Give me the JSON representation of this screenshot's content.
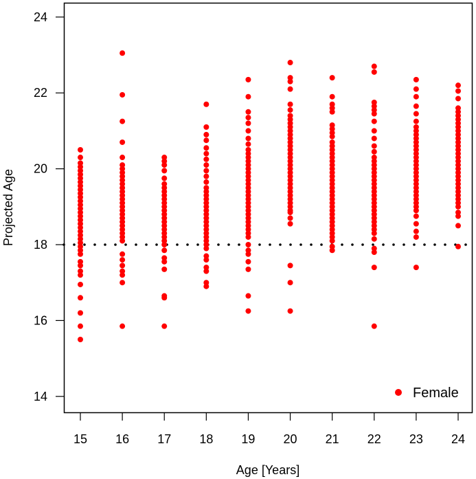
{
  "chart_data": {
    "type": "scatter",
    "title": "",
    "xlabel": "Age [Years]",
    "ylabel": "Projected Age",
    "xlim": [
      14.6,
      24.35
    ],
    "ylim": [
      13.6,
      24.4
    ],
    "xticks": [
      15,
      16,
      17,
      18,
      19,
      20,
      21,
      22,
      23,
      24
    ],
    "xtick_labels": [
      "15",
      "16",
      "17",
      "18",
      "19",
      "20",
      "21",
      "22",
      "23",
      "24"
    ],
    "yticks": [
      14,
      16,
      18,
      20,
      22,
      24
    ],
    "ytick_labels": [
      "14",
      "16",
      "18",
      "20",
      "22",
      "24"
    ],
    "grid": false,
    "legend": {
      "position": "bottom-right",
      "entries": [
        {
          "label": "Female",
          "color": "#ff0000",
          "marker": "circle"
        }
      ]
    },
    "reference_line": {
      "y": 18,
      "style": "dotted",
      "color": "#000000"
    },
    "series": [
      {
        "name": "Female",
        "color": "#ff0000",
        "points_by_age": [
          {
            "x": 15,
            "y": [
              20.5,
              20.3,
              20.15,
              20.05,
              19.95,
              19.85,
              19.75,
              19.65,
              19.55,
              19.45,
              19.35,
              19.25,
              19.15,
              19.05,
              18.95,
              18.85,
              18.75,
              18.65,
              18.55,
              18.45,
              18.35,
              18.25,
              18.15,
              18.05,
              17.95,
              17.85,
              17.75,
              17.55,
              17.45,
              17.3,
              17.2,
              16.95,
              16.6,
              16.2,
              15.85,
              15.5
            ]
          },
          {
            "x": 16,
            "y": [
              23.05,
              21.95,
              21.25,
              20.7,
              20.3,
              20.1,
              20.0,
              19.9,
              19.8,
              19.7,
              19.6,
              19.5,
              19.4,
              19.3,
              19.2,
              19.1,
              19.0,
              18.9,
              18.8,
              18.7,
              18.6,
              18.5,
              18.4,
              18.3,
              18.2,
              18.1,
              17.75,
              17.6,
              17.45,
              17.3,
              17.2,
              17.0,
              15.85
            ]
          },
          {
            "x": 17,
            "y": [
              20.3,
              20.2,
              20.1,
              19.95,
              19.75,
              19.6,
              19.5,
              19.4,
              19.3,
              19.2,
              19.1,
              19.0,
              18.9,
              18.8,
              18.7,
              18.6,
              18.5,
              18.4,
              18.3,
              18.2,
              18.1,
              18.0,
              17.85,
              17.65,
              17.55,
              17.35,
              16.65,
              16.6,
              15.85
            ]
          },
          {
            "x": 18,
            "y": [
              21.7,
              21.1,
              20.9,
              20.75,
              20.55,
              20.4,
              20.25,
              20.1,
              19.95,
              19.8,
              19.65,
              19.5,
              19.4,
              19.3,
              19.2,
              19.1,
              19.0,
              18.9,
              18.8,
              18.7,
              18.6,
              18.5,
              18.4,
              18.3,
              18.2,
              18.1,
              18.0,
              17.9,
              17.7,
              17.6,
              17.4,
              17.3,
              17.0,
              16.9
            ]
          },
          {
            "x": 19,
            "y": [
              22.35,
              21.9,
              21.5,
              21.35,
              21.2,
              21.0,
              20.8,
              20.65,
              20.5,
              20.4,
              20.3,
              20.2,
              20.1,
              20.0,
              19.9,
              19.8,
              19.7,
              19.6,
              19.5,
              19.4,
              19.3,
              19.2,
              19.1,
              19.0,
              18.9,
              18.8,
              18.7,
              18.6,
              18.5,
              18.4,
              18.3,
              18.2,
              18.0,
              17.85,
              17.75,
              17.55,
              17.35,
              16.65,
              16.25
            ]
          },
          {
            "x": 20,
            "y": [
              22.8,
              22.4,
              22.3,
              22.1,
              21.7,
              21.55,
              21.4,
              21.3,
              21.2,
              21.1,
              21.0,
              20.9,
              20.8,
              20.7,
              20.6,
              20.5,
              20.4,
              20.3,
              20.2,
              20.1,
              20.0,
              19.9,
              19.8,
              19.7,
              19.6,
              19.5,
              19.4,
              19.3,
              19.2,
              19.1,
              19.0,
              18.9,
              18.85,
              18.7,
              18.55,
              17.45,
              17.0,
              16.25
            ]
          },
          {
            "x": 21,
            "y": [
              22.4,
              21.9,
              21.7,
              21.6,
              21.5,
              21.15,
              21.05,
              20.95,
              20.85,
              20.7,
              20.6,
              20.5,
              20.4,
              20.3,
              20.2,
              20.1,
              20.0,
              19.9,
              19.8,
              19.7,
              19.6,
              19.5,
              19.4,
              19.3,
              19.2,
              19.1,
              19.0,
              18.9,
              18.8,
              18.7,
              18.6,
              18.5,
              18.4,
              18.3,
              18.2,
              18.1,
              17.95,
              17.85
            ]
          },
          {
            "x": 22,
            "y": [
              22.7,
              22.55,
              21.75,
              21.65,
              21.55,
              21.45,
              21.25,
              21.0,
              20.8,
              20.6,
              20.45,
              20.3,
              20.2,
              20.1,
              20.0,
              19.9,
              19.8,
              19.7,
              19.6,
              19.5,
              19.4,
              19.3,
              19.2,
              19.1,
              19.0,
              18.9,
              18.8,
              18.7,
              18.6,
              18.5,
              18.4,
              18.3,
              18.15,
              17.9,
              17.8,
              17.4,
              15.85
            ]
          },
          {
            "x": 23,
            "y": [
              22.35,
              22.1,
              21.9,
              21.65,
              21.45,
              21.25,
              21.1,
              21.0,
              20.9,
              20.8,
              20.7,
              20.6,
              20.5,
              20.4,
              20.3,
              20.2,
              20.1,
              20.0,
              19.9,
              19.8,
              19.7,
              19.6,
              19.5,
              19.4,
              19.3,
              19.2,
              19.1,
              19.0,
              18.9,
              18.75,
              18.55,
              18.35,
              18.2,
              17.4
            ]
          },
          {
            "x": 24,
            "y": [
              22.2,
              22.05,
              21.85,
              21.6,
              21.5,
              21.4,
              21.3,
              21.2,
              21.1,
              21.0,
              20.9,
              20.8,
              20.7,
              20.6,
              20.5,
              20.4,
              20.3,
              20.2,
              20.1,
              20.0,
              19.9,
              19.8,
              19.7,
              19.6,
              19.5,
              19.4,
              19.3,
              19.2,
              19.1,
              19.0,
              18.85,
              18.75,
              18.5,
              17.95
            ]
          }
        ]
      }
    ]
  }
}
